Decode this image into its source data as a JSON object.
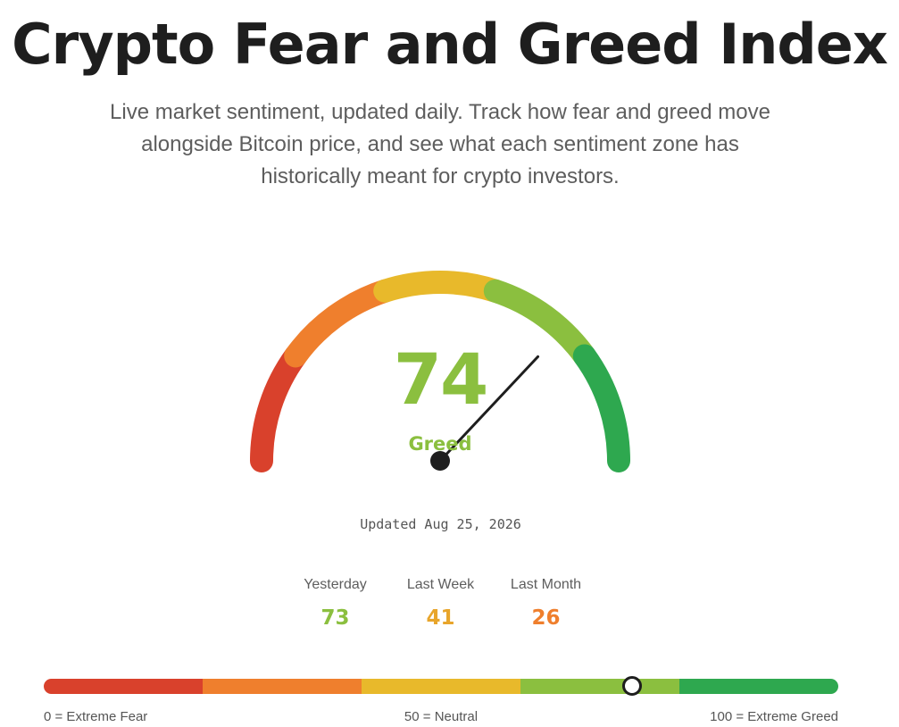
{
  "header": {
    "title": "Crypto Fear and Greed Index",
    "subtitle": "Live market sentiment, updated daily. Track how fear and greed move alongside Bitcoin price, and see what each sentiment zone has historically meant for crypto investors."
  },
  "gauge": {
    "value": 74,
    "value_text": "74",
    "classification": "Greed",
    "min": 0,
    "max": 100,
    "accent_color": "#8bbf3f",
    "zones": [
      {
        "name": "extreme-fear",
        "color": "#d9412c"
      },
      {
        "name": "fear",
        "color": "#ef7f2d"
      },
      {
        "name": "neutral",
        "color": "#e8b92b"
      },
      {
        "name": "greed",
        "color": "#8bbf3f"
      },
      {
        "name": "extreme-greed",
        "color": "#2ea84f"
      }
    ],
    "needle_color": "#1e1e1e"
  },
  "updated": {
    "text": "Updated Aug 25, 2026"
  },
  "history": [
    {
      "label": "Yesterday",
      "value": "73",
      "color": "#8bbf3f"
    },
    {
      "label": "Last Week",
      "value": "41",
      "color": "#e8a52b"
    },
    {
      "label": "Last Month",
      "value": "26",
      "color": "#ef7f2d"
    }
  ],
  "scale": {
    "value": 74,
    "min_label": "0 = Extreme Fear",
    "mid_label": "50 = Neutral",
    "max_label": "100 = Extreme Greed"
  }
}
